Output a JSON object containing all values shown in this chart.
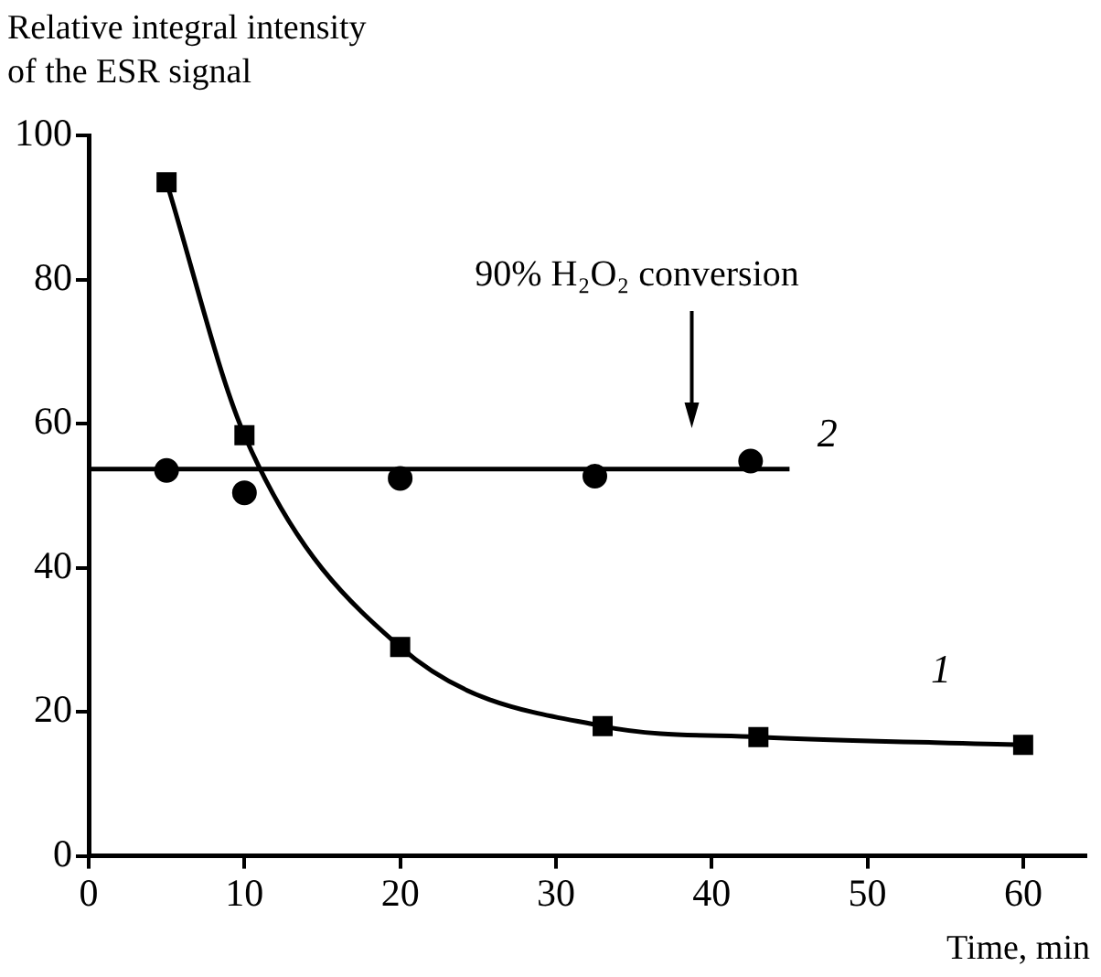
{
  "chart_data": {
    "type": "line",
    "ylabel": "Relative integral intensity of the ESR signal",
    "xlabel": "Time, min",
    "xlim": [
      0,
      64
    ],
    "xticks": [
      0,
      10,
      20,
      30,
      40,
      50,
      60
    ],
    "ylim": [
      0,
      100
    ],
    "yticks": [
      0,
      20,
      40,
      60,
      80,
      100
    ],
    "grid": false,
    "legend": false,
    "series": [
      {
        "name": "1",
        "color": "#000000",
        "marker": "square",
        "x": [
          5,
          10,
          20,
          33,
          43,
          60
        ],
        "values": [
          93.5,
          58.4,
          29,
          18,
          16.5,
          15.4
        ]
      },
      {
        "name": "2",
        "type": "scatter",
        "color": "#000000",
        "marker": "circle",
        "x": [
          5,
          10,
          20,
          32.5,
          42.5
        ],
        "values": [
          53.5,
          50.4,
          52.4,
          52.7,
          54.8
        ]
      },
      {
        "color": "#000000",
        "marker": "none",
        "x": [
          0,
          45
        ],
        "values": [
          53.7,
          53.7
        ]
      }
    ],
    "annotations": [
      "90% H₂O₂ conversion"
    ]
  }
}
